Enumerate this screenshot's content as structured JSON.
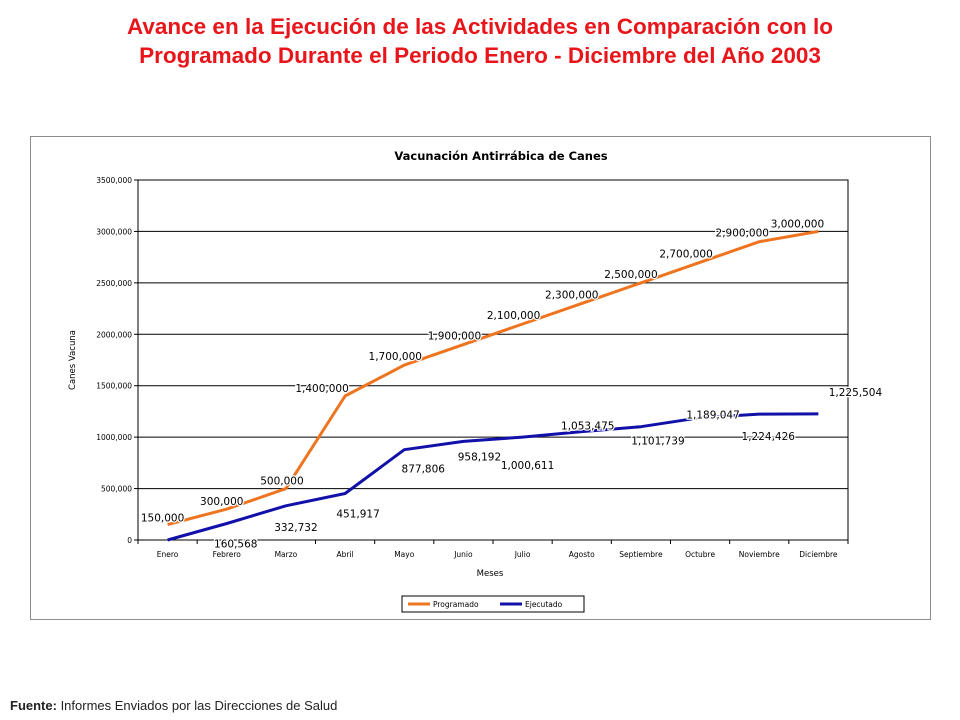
{
  "page": {
    "title_line1": "Avance en la Ejecución de las Actividades en Comparación con lo",
    "title_line2": "Programado Durante el Periodo Enero - Diciembre del Año 2003",
    "source_label": "Fuente:",
    "source_text": " Informes Enviados por las Direcciones de Salud"
  },
  "chart_data": {
    "type": "line",
    "title": "Vacunación Antirrábica de Canes",
    "xlabel": "Meses",
    "ylabel": "Canes Vacuna",
    "categories": [
      "Enero",
      "Febrero",
      "Marzo",
      "Abril",
      "Mayo",
      "Junio",
      "Julio",
      "Agosto",
      "Septiembre",
      "Octubre",
      "Noviembre",
      "Diciembre"
    ],
    "ylim": [
      0,
      3500000
    ],
    "yticks": [
      0,
      500000,
      1000000,
      1500000,
      2000000,
      2500000,
      3000000,
      3500000
    ],
    "ytick_labels": [
      "0",
      "500,000",
      "1000,000",
      "1500,000",
      "2000,000",
      "2500,000",
      "3000,000",
      "3500,000"
    ],
    "grid": "horizontal",
    "legend_position": "bottom",
    "series": [
      {
        "name": "Programado",
        "color": "#ee7420",
        "values": [
          150000,
          300000,
          500000,
          1400000,
          1700000,
          1900000,
          2100000,
          2300000,
          2500000,
          2700000,
          2900000,
          3000000
        ],
        "labels": [
          "150,000",
          "300,000",
          "500,000",
          "1,400,000",
          "1,700,000",
          "1,900,000",
          "2,100,000",
          "2,300,000",
          "2,500,000",
          "2,700,000",
          "2,900,000",
          "3,000,000"
        ]
      },
      {
        "name": "Ejecutado",
        "color": "#1111aa",
        "values": [
          0,
          160568,
          332732,
          451917,
          877806,
          958192,
          1000611,
          1053475,
          1101739,
          1189047,
          1224426,
          1225504
        ],
        "labels": [
          "",
          "160,568",
          "332,732",
          "451,917",
          "877,806",
          "958,192",
          "1,000,611",
          "1,053,475",
          "1,101,739",
          "1,189,047",
          "1,224,426",
          "1,225,504"
        ]
      }
    ]
  }
}
